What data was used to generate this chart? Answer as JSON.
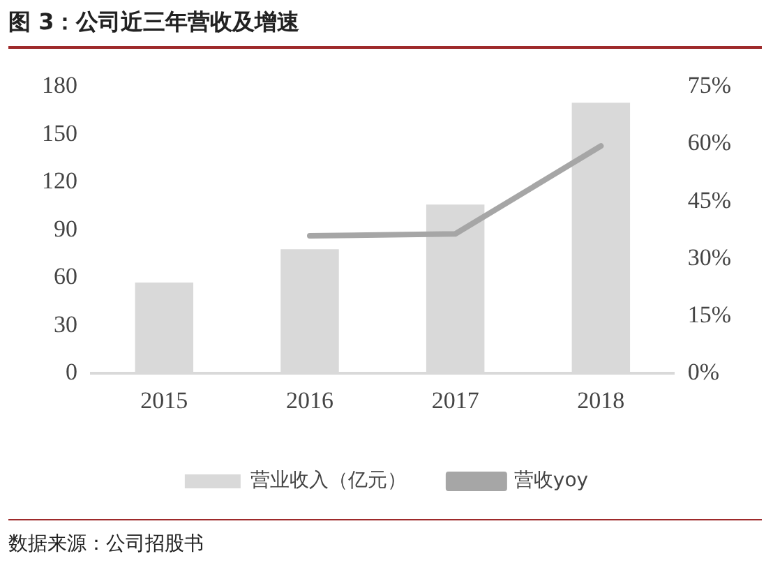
{
  "chart_data": {
    "type": "bar",
    "title": "图 3：公司近三年营收及增速",
    "categories": [
      "2015",
      "2016",
      "2017",
      "2018"
    ],
    "series": [
      {
        "name": "营业收入（亿元）",
        "color": "#d9d9d9",
        "values": [
          57,
          78,
          106,
          170
        ]
      },
      {
        "name": "营收yoy",
        "type": "line",
        "axis": "y2",
        "color": "#a6a6a6",
        "values": [
          null,
          36,
          36.5,
          59.5
        ]
      }
    ],
    "ylim": [
      0,
      180
    ],
    "yticks": [
      0,
      30,
      60,
      90,
      120,
      150,
      180
    ],
    "y2lim": [
      0,
      75
    ],
    "y2ticks": [
      {
        "value": 0,
        "label": "0%"
      },
      {
        "value": 15,
        "label": "15%"
      },
      {
        "value": 30,
        "label": "30%"
      },
      {
        "value": 45,
        "label": "45%"
      },
      {
        "value": 60,
        "label": "60%"
      },
      {
        "value": 75,
        "label": "75%"
      }
    ],
    "grid": false,
    "legend": "bottom",
    "marker": "none",
    "line_style": "solid",
    "annotations": [
      "数据来源：公司招股书"
    ]
  }
}
